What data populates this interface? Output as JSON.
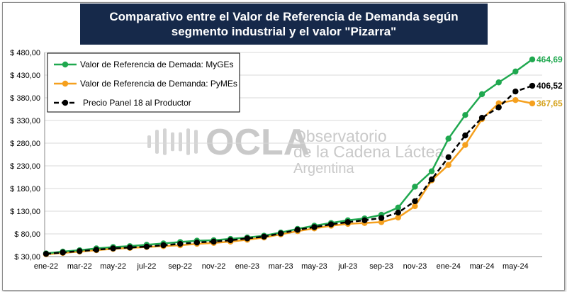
{
  "title": "Comparativo entre el Valor de Referencia de Demanda según segmento industrial y el valor \"Pizarra\"",
  "watermark": {
    "brand": "OCLA",
    "line1": "Observatorio",
    "line2": "de la Cadena Láctea",
    "line3": "Argentina"
  },
  "chart_data": {
    "type": "line",
    "x": [
      "ene-22",
      "feb-22",
      "mar-22",
      "abr-22",
      "may-22",
      "jun-22",
      "jul-22",
      "ago-22",
      "sep-22",
      "oct-22",
      "nov-22",
      "dic-22",
      "ene-23",
      "feb-23",
      "mar-23",
      "abr-23",
      "may-23",
      "jun-23",
      "jul-23",
      "ago-23",
      "sep-23",
      "oct-23",
      "nov-23",
      "dic-23",
      "ene-24",
      "feb-24",
      "mar-24",
      "abr-24",
      "may-24",
      "jun-24"
    ],
    "x_tick_labels": [
      "ene-22",
      "mar-22",
      "may-22",
      "jul-22",
      "sep-22",
      "nov-22",
      "ene-23",
      "mar-23",
      "may-23",
      "jul-23",
      "sep-23",
      "nov-23",
      "ene-24",
      "mar-24",
      "may-24"
    ],
    "y_ticks": [
      "$ 30,00",
      "$ 80,00",
      "$ 130,00",
      "$ 180,00",
      "$ 230,00",
      "$ 280,00",
      "$ 330,00",
      "$ 380,00",
      "$ 430,00",
      "$ 480,00"
    ],
    "ylim": [
      30,
      480
    ],
    "grid": true,
    "legend_position": "top-left",
    "series": [
      {
        "name": "Valor de Referencia de Demada: MyGEs",
        "color": "#1fa84f",
        "dashed": false,
        "values": [
          37,
          41,
          44,
          48,
          51,
          53,
          56,
          59,
          62,
          65,
          66,
          69,
          72,
          76,
          83,
          91,
          98,
          104,
          110,
          114,
          122,
          138,
          184,
          218,
          290,
          342,
          388,
          414,
          438,
          464.69
        ],
        "end_label": "464,69"
      },
      {
        "name": "Valor de Referencia de Demanda: PyMEs",
        "color": "#f5a01e",
        "dashed": false,
        "values": [
          35,
          38,
          41,
          44,
          47,
          49,
          51,
          53,
          55,
          58,
          60,
          63,
          67,
          72,
          79,
          86,
          92,
          98,
          102,
          104,
          106,
          116,
          141,
          198,
          232,
          276,
          333,
          368,
          375,
          367.65
        ],
        "end_label": "367,65"
      },
      {
        "name": "Precio Panel 18 al Productor",
        "color": "#000000",
        "dashed": true,
        "values": [
          36,
          39,
          42,
          45,
          48,
          50,
          52,
          55,
          58,
          61,
          63,
          66,
          70,
          74,
          81,
          89,
          95,
          101,
          106,
          110,
          115,
          127,
          152,
          200,
          249,
          297,
          336,
          359,
          394,
          406.52
        ],
        "end_label": "406,52"
      }
    ]
  }
}
